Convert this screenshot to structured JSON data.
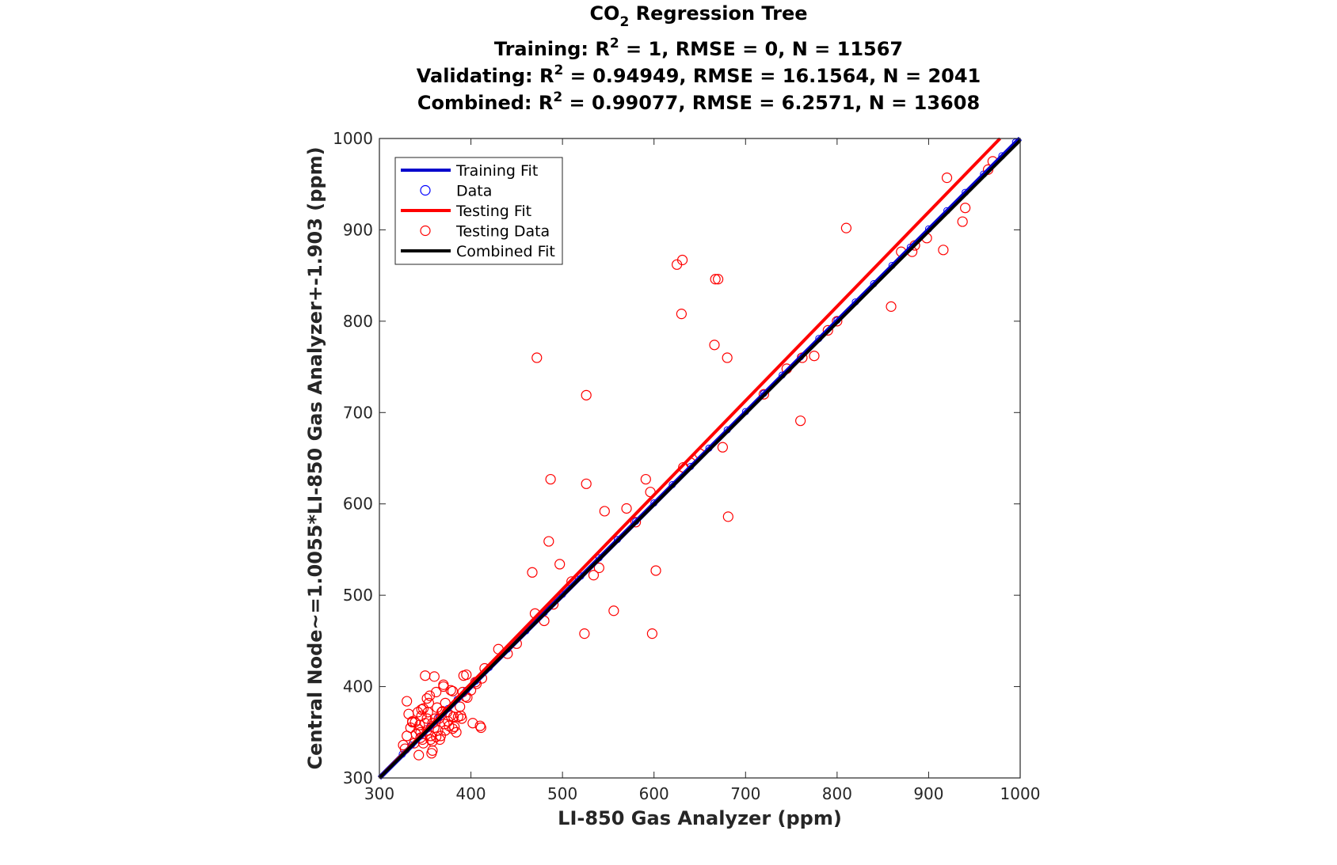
{
  "chart_data": {
    "type": "scatter",
    "title": {
      "line1_main": "CO",
      "line1_sub": "2",
      "line1_rest": " Regression Tree",
      "training": {
        "prefix": "Training: R",
        "sup": "2",
        "rest": " = 1, RMSE = 0, N = 11567"
      },
      "validating": {
        "prefix": "Validating: R",
        "sup": "2",
        "rest": " = 0.94949, RMSE = 16.1564, N = 2041"
      },
      "combined": {
        "prefix": "Combined: R",
        "sup": "2",
        "rest": " = 0.99077, RMSE = 6.2571, N = 13608"
      }
    },
    "xlabel": "LI-850 Gas Analyzer (ppm)",
    "ylabel": "Central Node~=1.0055*LI-850 Gas Analyzer+-1.903 (ppm)",
    "xlim": [
      300,
      1000
    ],
    "ylim": [
      300,
      1000
    ],
    "xticks": [
      "300",
      "400",
      "500",
      "600",
      "700",
      "800",
      "900",
      "1000"
    ],
    "yticks": [
      "300",
      "400",
      "500",
      "600",
      "700",
      "800",
      "900",
      "1000"
    ],
    "grid": false,
    "legend_position": "top-left",
    "legend": [
      {
        "label": "Training Fit",
        "kind": "line",
        "color": "#0000cc"
      },
      {
        "label": "Data",
        "kind": "marker",
        "color": "#0000ff"
      },
      {
        "label": "Testing Fit",
        "kind": "line",
        "color": "#ff0000"
      },
      {
        "label": "Testing Data",
        "kind": "marker",
        "color": "#ff0000"
      },
      {
        "label": "Combined Fit",
        "kind": "line",
        "color": "#000000"
      }
    ],
    "fits": {
      "training": {
        "x": [
          300,
          1000
        ],
        "y": [
          300,
          1000
        ],
        "color": "#0000cc"
      },
      "testing": {
        "x": [
          300,
          978
        ],
        "y": [
          300,
          1000
        ],
        "color": "#ff0000"
      },
      "combined": {
        "x": [
          300,
          1000
        ],
        "y": [
          300,
          998
        ],
        "color": "#000000"
      }
    },
    "training_data": {
      "color": "#0000ff",
      "x": [
        325,
        335,
        345,
        355,
        365,
        375,
        385,
        395,
        405,
        420,
        440,
        460,
        480,
        500,
        520,
        540,
        560,
        580,
        600,
        620,
        640,
        660,
        680,
        700,
        720,
        740,
        760,
        780,
        800,
        820,
        840,
        860,
        880,
        900,
        920,
        940,
        960,
        980,
        995
      ],
      "y": [
        326,
        336,
        346,
        356,
        366,
        376,
        386,
        396,
        406,
        421,
        441,
        461,
        481,
        501,
        521,
        541,
        561,
        581,
        601,
        621,
        641,
        661,
        681,
        701,
        721,
        741,
        761,
        781,
        801,
        821,
        841,
        861,
        881,
        901,
        921,
        941,
        961,
        981,
        996
      ]
    },
    "testing_data": {
      "color": "#ff0000",
      "x": [
        472,
        526,
        487,
        526,
        485,
        497,
        467,
        546,
        570,
        591,
        596,
        625,
        631,
        630,
        667,
        670,
        666,
        680,
        681,
        675,
        632,
        524,
        556,
        598,
        602,
        534,
        540,
        480,
        490,
        470,
        810,
        859,
        920,
        937,
        940,
        916,
        882,
        898,
        775,
        762,
        760,
        790,
        800,
        870,
        885,
        965,
        970,
        640,
        650,
        720,
        745,
        580,
        510,
        440,
        430,
        450,
        415,
        410,
        411,
        402,
        405,
        395,
        392,
        390,
        389,
        380,
        378,
        375,
        372,
        370,
        368,
        365,
        362,
        360,
        358,
        356,
        355,
        354,
        352,
        350,
        348,
        346,
        345,
        343,
        342,
        340,
        338,
        336,
        334,
        332,
        330,
        328,
        326,
        360,
        366,
        372,
        378,
        384,
        350,
        346,
        362,
        358,
        370,
        388,
        396,
        380,
        344,
        352,
        367,
        374,
        382,
        358,
        348,
        336,
        330,
        356,
        364,
        376,
        386,
        394,
        400,
        406,
        412,
        352,
        343,
        347,
        369,
        371,
        381,
        391,
        357,
        363,
        345,
        339,
        353,
        361
      ],
      "y": [
        760,
        719,
        627,
        622,
        559,
        534,
        525,
        592,
        595,
        627,
        613,
        862,
        867,
        808,
        846,
        846,
        774,
        760,
        586,
        662,
        640,
        458,
        483,
        458,
        527,
        522,
        530,
        472,
        490,
        480,
        902,
        816,
        957,
        909,
        924,
        878,
        876,
        891,
        762,
        760,
        691,
        790,
        800,
        876,
        883,
        966,
        975,
        645,
        655,
        720,
        748,
        580,
        515,
        436,
        441,
        447,
        420,
        357,
        355,
        360,
        405,
        413,
        412,
        365,
        368,
        354,
        396,
        362,
        352,
        400,
        372,
        365,
        345,
        411,
        360,
        342,
        390,
        382,
        352,
        412,
        338,
        368,
        350,
        325,
        372,
        348,
        338,
        362,
        355,
        370,
        346,
        332,
        336,
        355,
        342,
        382,
        368,
        350,
        360,
        375,
        394,
        330,
        402,
        378,
        388,
        395,
        358,
        365,
        346,
        372,
        356,
        340,
        376,
        361,
        384,
        346,
        352,
        357,
        367,
        389,
        396,
        403,
        409,
        387,
        353,
        342,
        373,
        359,
        367,
        394,
        327,
        377,
        344,
        361,
        372,
        365
      ]
    }
  }
}
